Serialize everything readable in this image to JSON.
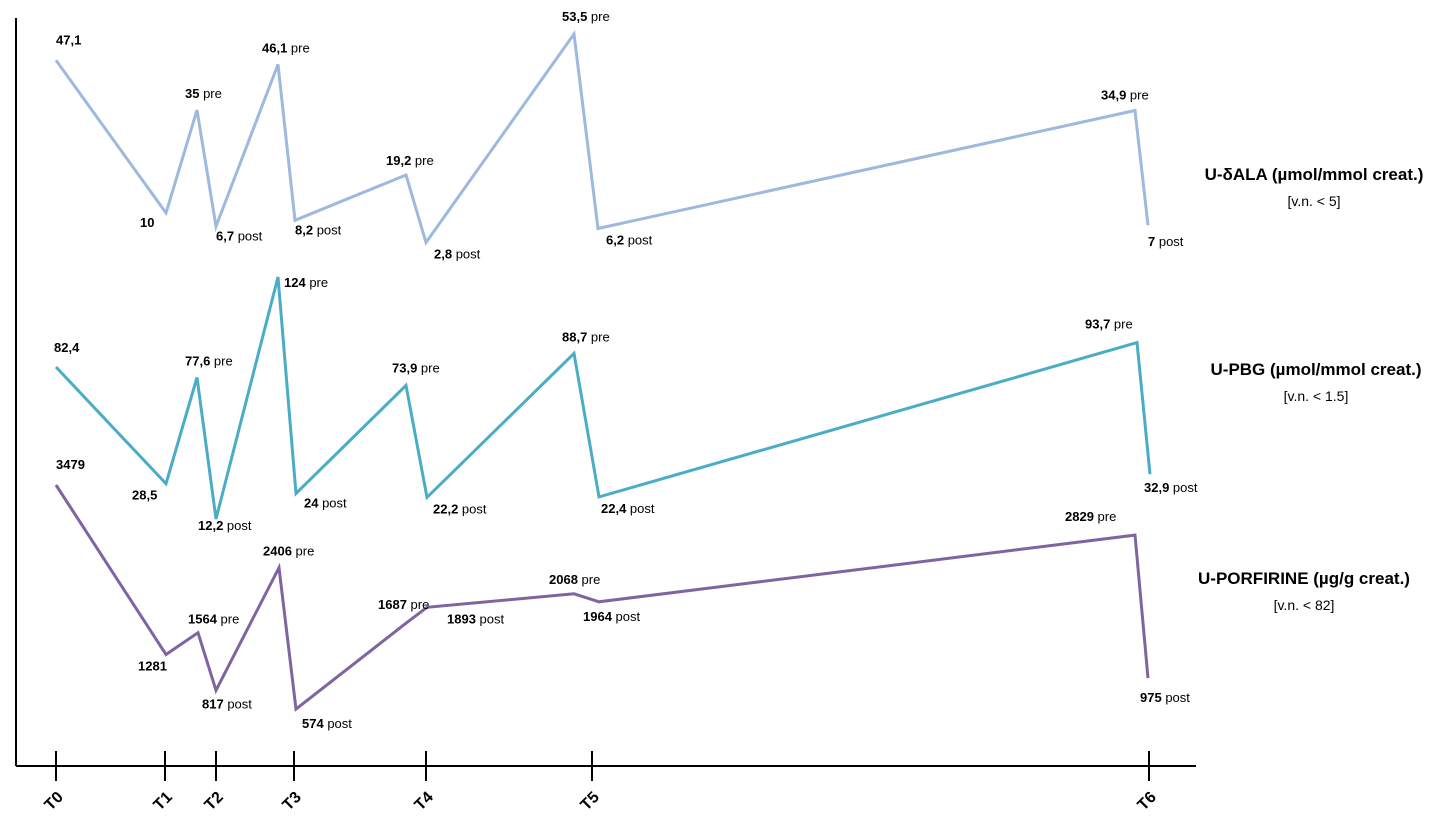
{
  "chart_data": {
    "type": "line",
    "x_ticks": [
      "T0",
      "T1",
      "T2",
      "T3",
      "T4",
      "T5",
      "T6"
    ],
    "y_axis_labels": false,
    "grid": false,
    "series": [
      {
        "name": "U-δALA (µmol/mmol creat.)",
        "reference": "[v.n. < 5]",
        "color": "#9DB9DE",
        "points": [
          {
            "x": "T0",
            "value": 47.1,
            "label": "47,1",
            "suffix": ""
          },
          {
            "x": "T1",
            "value": 10,
            "label": "10",
            "suffix": ""
          },
          {
            "x": "T1–T2",
            "value": 35,
            "label": "35",
            "suffix": "pre"
          },
          {
            "x": "T2",
            "value": 6.7,
            "label": "6,7",
            "suffix": "post"
          },
          {
            "x": "T2–T3",
            "value": 46.1,
            "label": "46,1",
            "suffix": "pre"
          },
          {
            "x": "T3",
            "value": 8.2,
            "label": "8,2",
            "suffix": "post"
          },
          {
            "x": "T3–T4",
            "value": 19.2,
            "label": "19,2",
            "suffix": "pre"
          },
          {
            "x": "T4",
            "value": 2.8,
            "label": "2,8",
            "suffix": "post"
          },
          {
            "x": "T4–T5",
            "value": 53.5,
            "label": "53,5",
            "suffix": "pre"
          },
          {
            "x": "T5",
            "value": 6.2,
            "label": "6,2",
            "suffix": "post"
          },
          {
            "x": "T5–T6",
            "value": 34.9,
            "label": "34,9",
            "suffix": "pre"
          },
          {
            "x": "T6",
            "value": 7,
            "label": "7",
            "suffix": "post"
          }
        ]
      },
      {
        "name": "U-PBG (µmol/mmol creat.)",
        "reference": "[v.n. < 1.5]",
        "color": "#4BACC6",
        "points": [
          {
            "x": "T0",
            "value": 82.4,
            "label": "82,4",
            "suffix": ""
          },
          {
            "x": "T1",
            "value": 28.5,
            "label": "28,5",
            "suffix": ""
          },
          {
            "x": "T1–T2",
            "value": 77.6,
            "label": "77,6",
            "suffix": "pre"
          },
          {
            "x": "T2",
            "value": 12.2,
            "label": "12,2",
            "suffix": "post"
          },
          {
            "x": "T2–T3",
            "value": 124,
            "label": "124",
            "suffix": "pre"
          },
          {
            "x": "T3",
            "value": 24,
            "label": "24",
            "suffix": "post"
          },
          {
            "x": "T3–T4",
            "value": 73.9,
            "label": "73,9",
            "suffix": "pre"
          },
          {
            "x": "T4",
            "value": 22.2,
            "label": "22,2",
            "suffix": "post"
          },
          {
            "x": "T4–T5",
            "value": 88.7,
            "label": "88,7",
            "suffix": "pre"
          },
          {
            "x": "T5",
            "value": 22.4,
            "label": "22,4",
            "suffix": "post"
          },
          {
            "x": "T5–T6",
            "value": 93.7,
            "label": "93,7",
            "suffix": "pre"
          },
          {
            "x": "T6",
            "value": 32.9,
            "label": "32,9",
            "suffix": "post"
          }
        ]
      },
      {
        "name": "U-PORFIRINE (µg/g creat.)",
        "reference": "[v.n. < 82]",
        "color": "#8064A2",
        "points": [
          {
            "x": "T0",
            "value": 3479,
            "label": "3479",
            "suffix": ""
          },
          {
            "x": "T1",
            "value": 1281,
            "label": "1281",
            "suffix": ""
          },
          {
            "x": "T1–T2",
            "value": 1564,
            "label": "1564",
            "suffix": "pre"
          },
          {
            "x": "T2",
            "value": 817,
            "label": "817",
            "suffix": "post"
          },
          {
            "x": "T2–T3",
            "value": 2406,
            "label": "2406",
            "suffix": "pre"
          },
          {
            "x": "T3",
            "value": 574,
            "label": "574",
            "suffix": "post"
          },
          {
            "x": "T3–T4",
            "value": 1687,
            "label": "1687",
            "suffix": "pre"
          },
          {
            "x": "T4",
            "value": 1893,
            "label": "1893",
            "suffix": "post"
          },
          {
            "x": "T4–T5",
            "value": 2068,
            "label": "2068",
            "suffix": "pre"
          },
          {
            "x": "T5",
            "value": 1964,
            "label": "1964",
            "suffix": "post"
          },
          {
            "x": "T5–T6",
            "value": 2829,
            "label": "2829",
            "suffix": "pre"
          },
          {
            "x": "T6",
            "value": 975,
            "label": "975",
            "suffix": "post"
          }
        ]
      }
    ]
  }
}
